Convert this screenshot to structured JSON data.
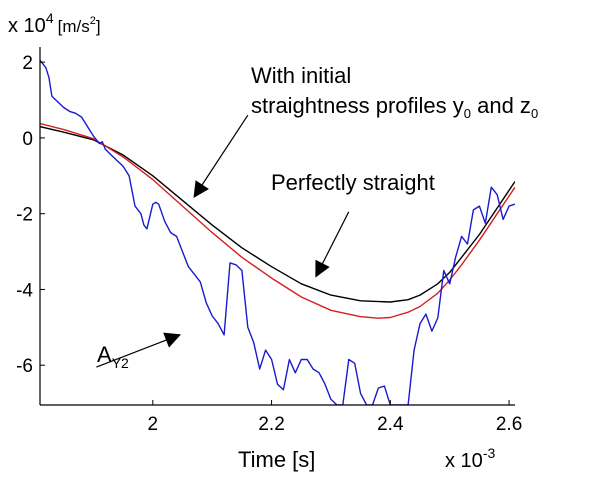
{
  "chart_data": {
    "type": "line",
    "xlabel": "Time [s]",
    "x_multiplier": "x 10",
    "x_multiplier_exp": "-3",
    "y_multiplier": "x 10",
    "y_multiplier_exp": "4",
    "y_unit_prefix": "[m/s",
    "y_unit_exp": "2",
    "y_unit_suffix": "]",
    "xlim": [
      1.81,
      2.61
    ],
    "ylim": [
      -7.05,
      2.4
    ],
    "xticks": [
      2,
      2.2,
      2.4,
      2.6
    ],
    "xtick_labels": [
      "2",
      "2.2",
      "2.4",
      "2.6"
    ],
    "yticks": [
      2,
      0,
      -2,
      -4,
      -6
    ],
    "ytick_labels": [
      "2",
      "0",
      "-2",
      "-4",
      "-6"
    ],
    "grid": false,
    "legend": null,
    "annotations": [
      {
        "lines": [
          "With initial",
          "straightness profiles y",
          " and z"
        ],
        "subscripts": [
          "0",
          "0"
        ],
        "arrow_from": [
          2.16,
          0.6
        ],
        "arrow_to": [
          2.07,
          -1.55
        ]
      },
      {
        "text": "Perfectly straight",
        "arrow_from": [
          2.33,
          -1.95
        ],
        "arrow_to": [
          2.275,
          -3.65
        ]
      },
      {
        "text": "A",
        "subscript": "Y2",
        "arrow_from": [
          1.905,
          -6.05
        ],
        "arrow_to": [
          2.045,
          -5.2
        ]
      }
    ],
    "series": [
      {
        "color": "#000000",
        "x": [
          1.81,
          1.85,
          1.9,
          1.95,
          2.0,
          2.05,
          2.1,
          2.15,
          2.2,
          2.25,
          2.3,
          2.35,
          2.4,
          2.43,
          2.45,
          2.48,
          2.5,
          2.52,
          2.55,
          2.58,
          2.61
        ],
        "values": [
          0.3,
          0.15,
          -0.05,
          -0.45,
          -1.0,
          -1.65,
          -2.3,
          -2.9,
          -3.4,
          -3.85,
          -4.15,
          -4.3,
          -4.33,
          -4.27,
          -4.15,
          -3.85,
          -3.55,
          -3.15,
          -2.55,
          -1.85,
          -1.15
        ]
      },
      {
        "color": "#d42020",
        "x": [
          1.81,
          1.85,
          1.9,
          1.95,
          2.0,
          2.05,
          2.1,
          2.15,
          2.2,
          2.25,
          2.3,
          2.35,
          2.38,
          2.4,
          2.43,
          2.45,
          2.48,
          2.5,
          2.52,
          2.55,
          2.58,
          2.61
        ],
        "values": [
          0.38,
          0.22,
          -0.02,
          -0.5,
          -1.1,
          -1.8,
          -2.5,
          -3.15,
          -3.7,
          -4.2,
          -4.55,
          -4.72,
          -4.76,
          -4.74,
          -4.6,
          -4.45,
          -4.1,
          -3.75,
          -3.35,
          -2.7,
          -2.0,
          -1.3
        ]
      },
      {
        "color": "#1a1ad0",
        "x": [
          1.81,
          1.815,
          1.82,
          1.825,
          1.83,
          1.84,
          1.85,
          1.86,
          1.87,
          1.88,
          1.89,
          1.9,
          1.91,
          1.915,
          1.92,
          1.93,
          1.94,
          1.95,
          1.96,
          1.97,
          1.98,
          1.985,
          1.99,
          2.0,
          2.005,
          2.01,
          2.02,
          2.03,
          2.04,
          2.05,
          2.06,
          2.07,
          2.08,
          2.09,
          2.1,
          2.11,
          2.12,
          2.13,
          2.14,
          2.15,
          2.16,
          2.17,
          2.18,
          2.19,
          2.2,
          2.21,
          2.22,
          2.23,
          2.24,
          2.25,
          2.26,
          2.27,
          2.28,
          2.29,
          2.3,
          2.31,
          2.32,
          2.33,
          2.34,
          2.35,
          2.36,
          2.37,
          2.38,
          2.39,
          2.4,
          2.41,
          2.42,
          2.425,
          2.43,
          2.44,
          2.45,
          2.46,
          2.47,
          2.48,
          2.49,
          2.5,
          2.51,
          2.52,
          2.53,
          2.54,
          2.55,
          2.56,
          2.57,
          2.58,
          2.59,
          2.6,
          2.61
        ],
        "values": [
          2.05,
          1.95,
          1.85,
          1.6,
          1.1,
          0.95,
          0.8,
          0.7,
          0.65,
          0.55,
          0.3,
          0.05,
          -0.15,
          -0.1,
          -0.3,
          -0.45,
          -0.6,
          -0.75,
          -1.0,
          -1.8,
          -2.0,
          -2.3,
          -2.4,
          -1.75,
          -1.7,
          -1.75,
          -2.2,
          -2.5,
          -2.6,
          -3.0,
          -3.4,
          -3.6,
          -3.8,
          -4.35,
          -4.7,
          -4.9,
          -5.2,
          -3.3,
          -3.35,
          -3.5,
          -5.0,
          -5.4,
          -6.1,
          -5.6,
          -5.85,
          -6.5,
          -6.65,
          -5.85,
          -6.2,
          -5.85,
          -5.85,
          -6.1,
          -6.2,
          -6.5,
          -6.9,
          -7.05,
          -7.05,
          -5.85,
          -5.95,
          -6.75,
          -7.05,
          -7.05,
          -6.6,
          -6.55,
          -7.05,
          -7.05,
          -7.05,
          -7.05,
          -7.05,
          -5.6,
          -4.9,
          -4.65,
          -5.1,
          -4.75,
          -3.5,
          -3.85,
          -3.15,
          -2.6,
          -2.8,
          -1.9,
          -1.8,
          -2.25,
          -1.3,
          -1.5,
          -2.15,
          -1.8,
          -1.75
        ]
      }
    ]
  }
}
